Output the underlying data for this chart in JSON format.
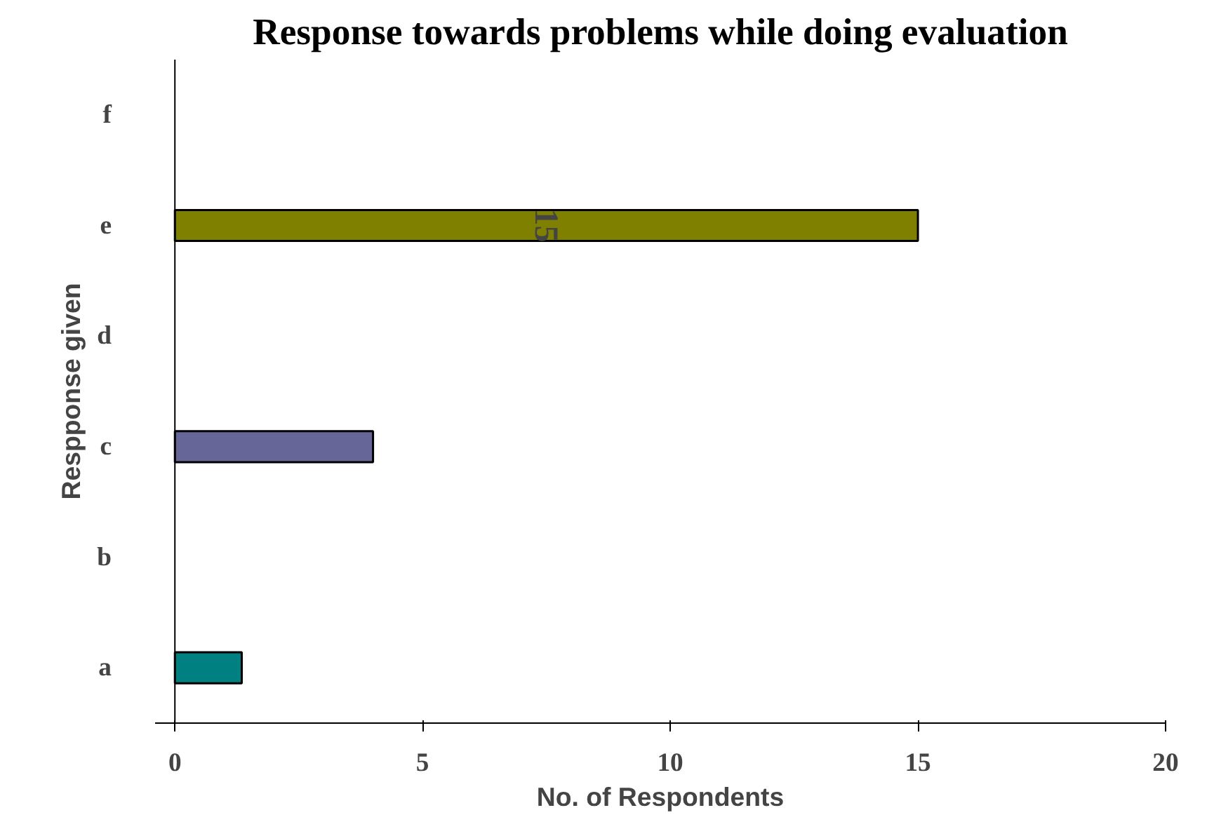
{
  "chart_data": {
    "type": "bar",
    "orientation": "horizontal",
    "title": "Response towards problems while doing evaluation",
    "xlabel": "No. of Respondents",
    "ylabel": "Respponse given",
    "categories": [
      "f",
      "e",
      "d",
      "c",
      "b",
      "a"
    ],
    "values": [
      0,
      15,
      0,
      4,
      0,
      1.35
    ],
    "colors": [
      "#808000",
      "#808000",
      "#808000",
      "#666699",
      "#666699",
      "#008080"
    ],
    "value_labels": [
      null,
      "15",
      null,
      null,
      null,
      null
    ],
    "xlim": [
      -0.4,
      20
    ],
    "xticks": [
      0,
      5,
      10,
      15,
      20
    ],
    "grid": false
  }
}
